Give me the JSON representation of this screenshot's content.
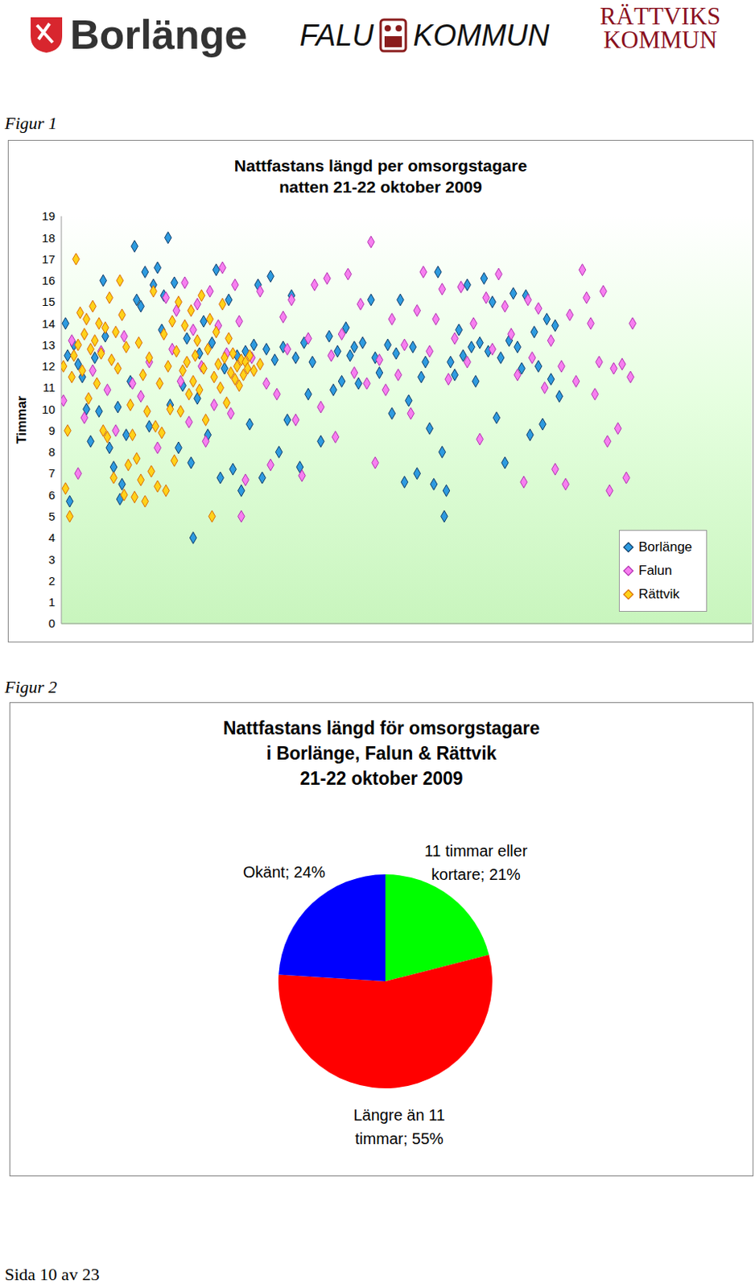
{
  "header": {
    "logos": [
      "Borlänge",
      "FALU KOMMUN",
      "RÄTTVIKS KOMMUN"
    ]
  },
  "chart_data": [
    {
      "type": "scatter",
      "caption": "Figur 1",
      "title": "Nattfastans längd per omsorgstagare\nnatten 21-22 oktober 2009",
      "y_label": "Timmar",
      "xlim": [
        0,
        330
      ],
      "ylim": [
        0,
        19
      ],
      "yticks": [
        0,
        1,
        2,
        3,
        4,
        5,
        6,
        7,
        8,
        9,
        10,
        11,
        12,
        13,
        14,
        15,
        16,
        17,
        18,
        19
      ],
      "grid": false,
      "tick_labels": "y",
      "legend": "lower right",
      "marker": "diamond",
      "series": [
        {
          "name": "Borlänge",
          "color": "#2e9be0",
          "x": [
            2,
            3,
            4,
            6,
            8,
            10,
            12,
            14,
            16,
            18,
            20,
            21,
            23,
            25,
            27,
            28,
            29,
            31,
            33,
            35,
            36,
            38,
            40,
            42,
            44,
            46,
            48,
            49,
            51,
            52,
            54,
            56,
            58,
            60,
            62,
            63,
            65,
            66,
            68,
            70,
            72,
            74,
            76,
            78,
            80,
            82,
            84,
            86,
            88,
            90,
            92,
            94,
            96,
            98,
            100,
            102,
            104,
            106,
            108,
            110,
            112,
            114,
            116,
            118,
            120,
            124,
            128,
            130,
            132,
            134,
            136,
            138,
            140,
            142,
            144,
            148,
            150,
            152,
            156,
            158,
            160,
            162,
            164,
            166,
            168,
            170,
            172,
            174,
            176,
            178,
            180,
            182,
            183,
            184,
            186,
            188,
            190,
            192,
            194,
            196,
            198,
            200,
            202,
            204,
            206,
            208,
            210,
            212,
            214,
            216,
            218,
            220,
            222,
            224,
            226,
            228,
            230,
            232,
            234,
            236,
            238
          ],
          "values": [
            14,
            12.5,
            5.7,
            13,
            12.1,
            11.5,
            10,
            8.5,
            12.4,
            9.9,
            16,
            13.4,
            8.2,
            7.3,
            10.1,
            5.8,
            6.5,
            8.8,
            11.3,
            17.6,
            15.1,
            14.8,
            16.4,
            9.2,
            15.8,
            16.6,
            13.7,
            15.3,
            18,
            10.2,
            15.9,
            8.2,
            11.1,
            13.3,
            7.5,
            4,
            10.5,
            12.6,
            14.1,
            8.8,
            13.1,
            16.5,
            6.8,
            11.9,
            15.1,
            7.2,
            12.5,
            6.2,
            12.7,
            9.3,
            13,
            15.8,
            6.8,
            12.8,
            16.2,
            12.3,
            8,
            12.9,
            9.5,
            15.3,
            12.4,
            7.3,
            13.1,
            10.7,
            12.2,
            8.5,
            13.4,
            10.9,
            12.7,
            11.3,
            13.8,
            12.5,
            12.9,
            11.2,
            13.1,
            15.1,
            12.4,
            11.7,
            13,
            9.8,
            12.6,
            15.1,
            6.6,
            10.4,
            12.9,
            7,
            11.5,
            12.2,
            9.1,
            6.5,
            16.4,
            8,
            5,
            6.2,
            12.2,
            11.6,
            13.7,
            12.5,
            15.8,
            12.9,
            11.3,
            13.1,
            16.1,
            12.7,
            15,
            9.6,
            12.4,
            7.5,
            13.2,
            15.4,
            12.9,
            11.9,
            15.3,
            8.8,
            13.6,
            12,
            9.3,
            14.2,
            11.4,
            13.9,
            10.6
          ]
        },
        {
          "name": "Falun",
          "color": "#f77ff0",
          "x": [
            1,
            5,
            8,
            11,
            15,
            19,
            22,
            26,
            30,
            34,
            38,
            42,
            46,
            50,
            53,
            55,
            57,
            59,
            61,
            63,
            65,
            67,
            69,
            71,
            73,
            75,
            77,
            79,
            81,
            83,
            85,
            86,
            88,
            91,
            95,
            98,
            100,
            103,
            106,
            108,
            110,
            112,
            115,
            118,
            121,
            124,
            127,
            129,
            131,
            134,
            137,
            140,
            143,
            146,
            148,
            150,
            152,
            155,
            158,
            161,
            164,
            167,
            170,
            173,
            176,
            179,
            182,
            185,
            188,
            191,
            194,
            197,
            200,
            203,
            206,
            209,
            212,
            215,
            218,
            221,
            223,
            225,
            228,
            231,
            234,
            236,
            239,
            241,
            243,
            246,
            249,
            251,
            253,
            255,
            257,
            259,
            261,
            262,
            264,
            266,
            268,
            270,
            272,
            273
          ],
          "values": [
            10.4,
            13.2,
            7,
            9.6,
            11.8,
            12.7,
            10.9,
            9,
            13.4,
            11.2,
            10.6,
            12.2,
            8.2,
            15.2,
            12.8,
            14.6,
            11.3,
            15.9,
            9.4,
            13.7,
            14.9,
            12,
            8.5,
            15.5,
            10.2,
            13.9,
            16.6,
            12.6,
            9.8,
            15.8,
            14.1,
            5,
            6.7,
            12.4,
            15.5,
            11.2,
            7.4,
            10.7,
            14.3,
            12.8,
            15.1,
            9.5,
            6.9,
            13.3,
            15.8,
            10.1,
            16.1,
            12.5,
            8.7,
            13.5,
            16.3,
            11.7,
            14.9,
            11.2,
            17.8,
            7.5,
            12.3,
            10.9,
            14.2,
            11.6,
            13,
            9.8,
            14.6,
            16.4,
            12.7,
            14.2,
            15.6,
            11.4,
            13.3,
            15.7,
            12.2,
            14,
            8.6,
            15.2,
            12.8,
            16.3,
            14.8,
            13.5,
            11.6,
            6.6,
            15.1,
            12.4,
            14.7,
            11,
            13.2,
            7.2,
            12,
            6.5,
            14.4,
            11.3,
            16.5,
            15.2,
            14,
            10.7,
            12.2,
            15.5,
            8.5,
            6.2,
            11.9,
            9.1,
            12.1,
            6.8,
            11.5,
            14
          ]
        },
        {
          "name": "Rättvik",
          "color": "#ffd21a",
          "x": [
            1,
            2,
            3,
            4,
            5,
            6,
            7,
            8,
            9,
            10,
            11,
            12,
            13,
            14,
            15,
            16,
            17,
            18,
            19,
            20,
            21,
            22,
            23,
            24,
            25,
            26,
            27,
            28,
            29,
            30,
            31,
            32,
            33,
            34,
            35,
            36,
            37,
            38,
            39,
            40,
            41,
            42,
            43,
            44,
            45,
            46,
            47,
            48,
            49,
            50,
            51,
            52,
            53,
            54,
            55,
            56,
            57,
            58,
            59,
            60,
            61,
            62,
            63,
            64,
            65,
            66,
            67,
            68,
            69,
            70,
            71,
            72,
            73,
            74,
            75,
            76,
            77,
            78,
            79,
            80,
            81,
            82,
            83,
            84,
            85,
            86,
            87,
            88,
            89,
            90,
            92,
            95
          ],
          "values": [
            12,
            6.3,
            9,
            5,
            11.5,
            12.5,
            17,
            13,
            14.5,
            11.8,
            13.5,
            14.2,
            10.5,
            12.8,
            14.8,
            13.2,
            11.2,
            14,
            12.6,
            9,
            13.8,
            8.7,
            15.2,
            12.3,
            6.8,
            13.6,
            11.9,
            16,
            14.4,
            6,
            12.9,
            7.4,
            10.2,
            8.8,
            5.9,
            7.7,
            13.1,
            6.7,
            11.6,
            5.7,
            9.9,
            12.4,
            7.1,
            15.5,
            9.2,
            6.4,
            11.2,
            8.9,
            13.5,
            6.2,
            12,
            10,
            14.1,
            7.6,
            12.7,
            15,
            9.9,
            11.8,
            13.9,
            12.2,
            10.7,
            14.6,
            11.3,
            12.5,
            13.2,
            10.9,
            15.3,
            11.9,
            9.5,
            12.8,
            14.2,
            5,
            11.5,
            13.6,
            12.1,
            11,
            14.9,
            12.4,
            10.3,
            13.3,
            11.7,
            12.6,
            11.4,
            12,
            11.1,
            12.3,
            11.6,
            12.2,
            11.9,
            12.5,
            11.8,
            12.1
          ]
        }
      ]
    },
    {
      "type": "pie",
      "caption": "Figur 2",
      "title": "Nattfastans längd för omsorgstagare\ni Borlänge, Falun & Rättvik\n21-22 oktober 2009",
      "categories": [
        "11 timmar eller kortare",
        "Längre än 11 timmar",
        "Okänt"
      ],
      "values": [
        21,
        55,
        24
      ],
      "value_labels": [
        "11 timmar eller kortare; 21%",
        "Längre än 11 timmar; 55%",
        "Okänt; 24%"
      ],
      "colors": [
        "#00ff00",
        "#ff0000",
        "#0000ff"
      ],
      "data_labels": true
    }
  ],
  "footer": "Sida 10 av 23"
}
